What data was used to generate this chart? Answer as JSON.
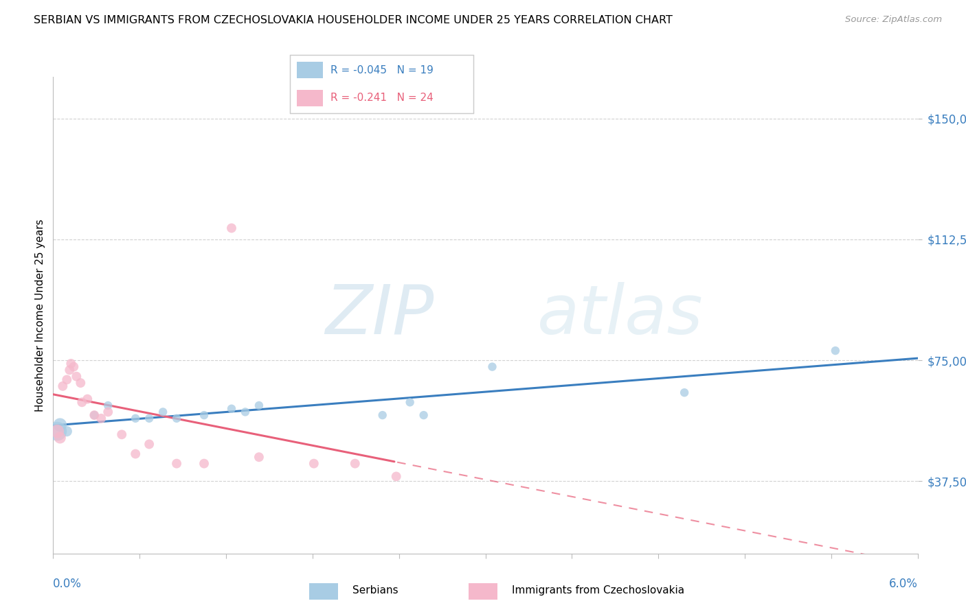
{
  "title": "SERBIAN VS IMMIGRANTS FROM CZECHOSLOVAKIA HOUSEHOLDER INCOME UNDER 25 YEARS CORRELATION CHART",
  "source": "Source: ZipAtlas.com",
  "ylabel": "Householder Income Under 25 years",
  "xlim": [
    0.0,
    0.063
  ],
  "ylim": [
    15000,
    163000
  ],
  "yticks": [
    37500,
    75000,
    112500,
    150000
  ],
  "ytick_labels": [
    "$37,500",
    "$75,000",
    "$112,500",
    "$150,000"
  ],
  "xtick_label_left": "0.0%",
  "xtick_label_right": "6.0%",
  "legend_blue_R": "-0.045",
  "legend_blue_N": "19",
  "legend_pink_R": "-0.241",
  "legend_pink_N": "24",
  "blue_scatter_color": "#a8cce4",
  "pink_scatter_color": "#f5b8cb",
  "blue_line_color": "#3a7ebf",
  "pink_line_color": "#e8607a",
  "ytick_color": "#3a7ebf",
  "background": "#ffffff",
  "grid_color": "#cccccc",
  "serbians_x": [
    0.0003,
    0.0005,
    0.001,
    0.003,
    0.004,
    0.006,
    0.007,
    0.008,
    0.009,
    0.011,
    0.013,
    0.014,
    0.015,
    0.024,
    0.026,
    0.027,
    0.032,
    0.046,
    0.057
  ],
  "serbians_y": [
    53000,
    55000,
    53000,
    58000,
    61000,
    57000,
    57000,
    59000,
    57000,
    58000,
    60000,
    59000,
    61000,
    58000,
    62000,
    58000,
    73000,
    65000,
    78000
  ],
  "serbians_size": [
    400,
    200,
    120,
    80,
    80,
    80,
    80,
    80,
    80,
    80,
    80,
    80,
    80,
    80,
    80,
    80,
    80,
    80,
    80
  ],
  "immigrants_x": [
    0.0003,
    0.0005,
    0.0007,
    0.001,
    0.0012,
    0.0013,
    0.0015,
    0.0017,
    0.002,
    0.0021,
    0.0025,
    0.003,
    0.0035,
    0.004,
    0.005,
    0.006,
    0.007,
    0.009,
    0.011,
    0.013,
    0.015,
    0.019,
    0.022,
    0.025
  ],
  "immigrants_y": [
    53000,
    51000,
    67000,
    69000,
    72000,
    74000,
    73000,
    70000,
    68000,
    62000,
    63000,
    58000,
    57000,
    59000,
    52000,
    46000,
    49000,
    43000,
    43000,
    116000,
    45000,
    43000,
    43000,
    39000
  ],
  "immigrants_size": [
    200,
    150,
    100,
    100,
    100,
    100,
    100,
    100,
    100,
    100,
    100,
    100,
    100,
    100,
    100,
    100,
    100,
    100,
    100,
    100,
    100,
    100,
    100,
    100
  ]
}
